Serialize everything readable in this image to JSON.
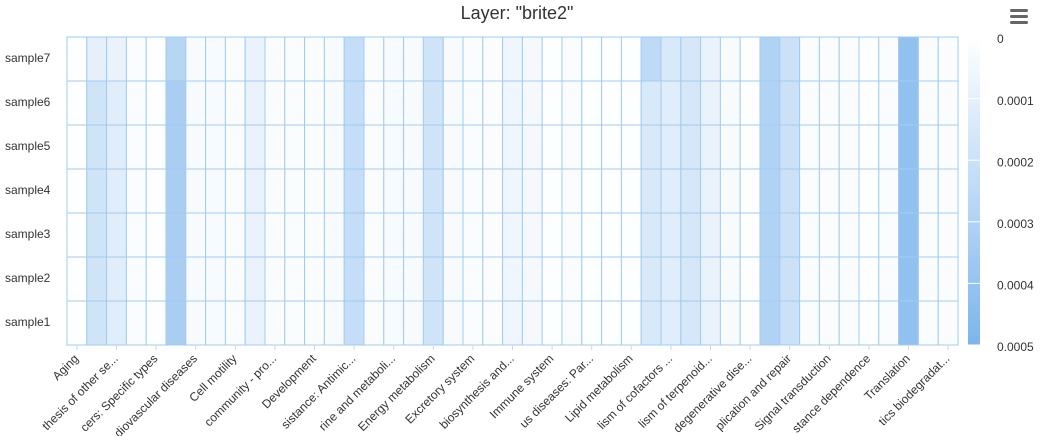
{
  "chart_data": {
    "type": "heatmap",
    "title": "Layer: \"brite2\"",
    "x": [
      "Aging",
      null,
      "thesis of other se...",
      null,
      "cers: Specific types",
      null,
      "diovascular diseases",
      null,
      "Cell motility",
      null,
      "community - pro...",
      null,
      "Development",
      null,
      "sistance: Antimic...",
      null,
      "rine and metaboli...",
      null,
      "Energy metabolism",
      null,
      "Excretory system",
      null,
      "biosynthesis and...",
      null,
      "Immune system",
      null,
      "us diseases: Par...",
      null,
      "Lipid metabolism",
      null,
      "lism of cofactors ...",
      null,
      "lism of terpenoid...",
      null,
      "degenerative dise...",
      null,
      "plication and repair",
      null,
      "Signal transduction",
      null,
      "stance dependence",
      null,
      "Translation",
      null,
      "tics biodegradat..."
    ],
    "y": [
      "sample1",
      "sample2",
      "sample3",
      "sample4",
      "sample5",
      "sample6",
      "sample7"
    ],
    "values": [
      [
        1e-05,
        0.00018,
        0.00012,
        2e-05,
        1e-05,
        0.00033,
        3e-05,
        3e-05,
        2e-05,
        8e-05,
        2e-05,
        2e-05,
        2e-05,
        3e-05,
        0.00022,
        2e-05,
        3e-05,
        3e-05,
        0.00018,
        3e-05,
        2e-05,
        2e-05,
        6e-05,
        4e-05,
        1e-05,
        2e-05,
        1e-05,
        1e-05,
        1e-05,
        0.00015,
        0.00012,
        0.00016,
        8e-05,
        3e-05,
        1e-05,
        0.0003,
        0.0002,
        2e-05,
        2e-05,
        2e-05,
        1e-05,
        2e-05,
        0.00042,
        2e-05,
        2e-05
      ],
      [
        1e-05,
        0.00018,
        0.00012,
        2e-05,
        1e-05,
        0.00033,
        3e-05,
        3e-05,
        2e-05,
        8e-05,
        2e-05,
        2e-05,
        2e-05,
        3e-05,
        0.00022,
        2e-05,
        3e-05,
        3e-05,
        0.00018,
        3e-05,
        2e-05,
        2e-05,
        6e-05,
        4e-05,
        1e-05,
        2e-05,
        1e-05,
        1e-05,
        1e-05,
        0.00015,
        0.00012,
        0.00016,
        8e-05,
        3e-05,
        1e-05,
        0.0003,
        0.0002,
        2e-05,
        2e-05,
        2e-05,
        1e-05,
        2e-05,
        0.00042,
        2e-05,
        2e-05
      ],
      [
        1e-05,
        0.00018,
        0.00012,
        2e-05,
        1e-05,
        0.00033,
        3e-05,
        3e-05,
        2e-05,
        8e-05,
        2e-05,
        2e-05,
        2e-05,
        3e-05,
        0.00022,
        2e-05,
        3e-05,
        3e-05,
        0.00018,
        3e-05,
        2e-05,
        2e-05,
        6e-05,
        4e-05,
        1e-05,
        2e-05,
        1e-05,
        1e-05,
        1e-05,
        0.00015,
        0.00012,
        0.00016,
        8e-05,
        3e-05,
        1e-05,
        0.0003,
        0.0002,
        2e-05,
        2e-05,
        2e-05,
        1e-05,
        2e-05,
        0.00042,
        2e-05,
        2e-05
      ],
      [
        1e-05,
        0.00018,
        0.00012,
        2e-05,
        1e-05,
        0.00033,
        3e-05,
        3e-05,
        2e-05,
        8e-05,
        2e-05,
        2e-05,
        2e-05,
        3e-05,
        0.00022,
        2e-05,
        3e-05,
        3e-05,
        0.00018,
        3e-05,
        2e-05,
        2e-05,
        6e-05,
        4e-05,
        1e-05,
        2e-05,
        1e-05,
        1e-05,
        1e-05,
        0.00015,
        0.00012,
        0.00016,
        8e-05,
        3e-05,
        1e-05,
        0.0003,
        0.0002,
        2e-05,
        2e-05,
        2e-05,
        1e-05,
        2e-05,
        0.00042,
        2e-05,
        2e-05
      ],
      [
        1e-05,
        0.00018,
        0.00012,
        2e-05,
        1e-05,
        0.00033,
        3e-05,
        3e-05,
        2e-05,
        8e-05,
        2e-05,
        2e-05,
        2e-05,
        3e-05,
        0.00022,
        2e-05,
        3e-05,
        3e-05,
        0.00018,
        3e-05,
        2e-05,
        2e-05,
        6e-05,
        4e-05,
        1e-05,
        2e-05,
        1e-05,
        1e-05,
        1e-05,
        0.00015,
        0.00012,
        0.00016,
        8e-05,
        3e-05,
        1e-05,
        0.0003,
        0.0002,
        2e-05,
        2e-05,
        2e-05,
        1e-05,
        2e-05,
        0.00042,
        2e-05,
        2e-05
      ],
      [
        1e-05,
        0.00018,
        0.00012,
        2e-05,
        1e-05,
        0.00033,
        3e-05,
        3e-05,
        2e-05,
        8e-05,
        2e-05,
        2e-05,
        2e-05,
        3e-05,
        0.00022,
        2e-05,
        3e-05,
        3e-05,
        0.00018,
        3e-05,
        2e-05,
        2e-05,
        6e-05,
        4e-05,
        1e-05,
        2e-05,
        1e-05,
        1e-05,
        1e-05,
        0.00015,
        0.00012,
        0.00016,
        8e-05,
        3e-05,
        1e-05,
        0.0003,
        0.0002,
        2e-05,
        2e-05,
        2e-05,
        1e-05,
        2e-05,
        0.00042,
        2e-05,
        2e-05
      ],
      [
        1e-05,
        0.0001,
        8e-05,
        2e-05,
        1e-05,
        0.00028,
        3e-05,
        3e-05,
        2e-05,
        8e-05,
        2e-05,
        2e-05,
        2e-05,
        3e-05,
        0.00022,
        2e-05,
        3e-05,
        3e-05,
        0.00018,
        3e-05,
        2e-05,
        2e-05,
        6e-05,
        4e-05,
        1e-05,
        2e-05,
        1e-05,
        1e-05,
        1e-05,
        0.00025,
        0.00015,
        0.00016,
        8e-05,
        3e-05,
        1e-05,
        0.0003,
        0.0002,
        2e-05,
        2e-05,
        2e-05,
        1e-05,
        2e-05,
        0.00042,
        2e-05,
        2e-05
      ]
    ],
    "colorlim": [
      0,
      0.0005
    ],
    "colorticks": [
      0,
      0.0001,
      0.0002,
      0.0003,
      0.0004,
      0.0005
    ],
    "min_color": "#ffffff",
    "max_color": "#7cb5ec"
  }
}
